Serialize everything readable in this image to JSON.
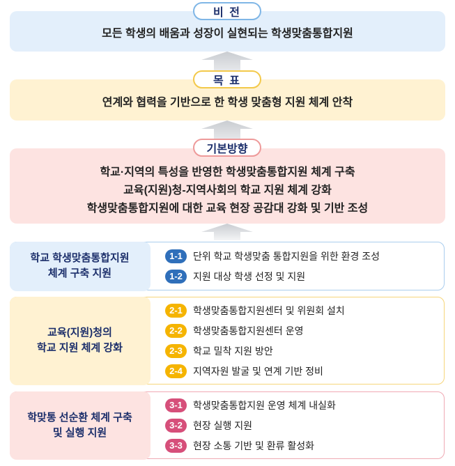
{
  "vision": {
    "label": "비 전",
    "text": "모든 학생의 배움과 성장이 실현되는 학생맞춤통합지원"
  },
  "goal": {
    "label": "목 표",
    "text": "연계와 협력을 기반으로 한 학생 맞춤형 지원 체계 안착"
  },
  "direction": {
    "label": "기본방향",
    "lines": [
      "학교·지역의 특성을 반영한 학생맞춤통합지원 체계 구축",
      "교육(지원)청-지역사회의 학교 지원 체계 강화",
      "학생맞춤통합지원에 대한 교육 현장 공감대 강화 및 기반 조성"
    ]
  },
  "strategies": [
    {
      "title": [
        "학교 학생맞춤통합지원",
        "체계 구축 지원"
      ],
      "color": "#2f6fba",
      "items": [
        {
          "num": "1-1",
          "text": "단위 학교 학생맞춤 통합지원을 위한 환경 조성"
        },
        {
          "num": "1-2",
          "text": "지원 대상 학생 선정 및 지원"
        }
      ]
    },
    {
      "title": [
        "교육(지원)청의",
        "학교 지원 체계 강화"
      ],
      "color": "#f5b400",
      "items": [
        {
          "num": "2-1",
          "text": "학생맞춤통합지원센터 및 위원회 설치"
        },
        {
          "num": "2-2",
          "text": "학생맞춤통합지원센터 운영"
        },
        {
          "num": "2-3",
          "text": "학교 밀착 지원 방안"
        },
        {
          "num": "2-4",
          "text": "지역자원 발굴 및 연계 기반 정비"
        }
      ]
    },
    {
      "title": [
        "학맞통 선순환 체계 구축",
        "및 실행 지원"
      ],
      "color": "#d64f7a",
      "items": [
        {
          "num": "3-1",
          "text": "학생맞춤통합지원 운영 체계 내실화"
        },
        {
          "num": "3-2",
          "text": "현장 실행 지원"
        },
        {
          "num": "3-3",
          "text": "현장 소통 기반 및 환류 활성화"
        }
      ]
    }
  ],
  "colors": {
    "blue_bg": "#e3effb",
    "yellow_bg": "#fff2d2",
    "pink_bg": "#fde3e1",
    "navy": "#1c2f6b"
  }
}
